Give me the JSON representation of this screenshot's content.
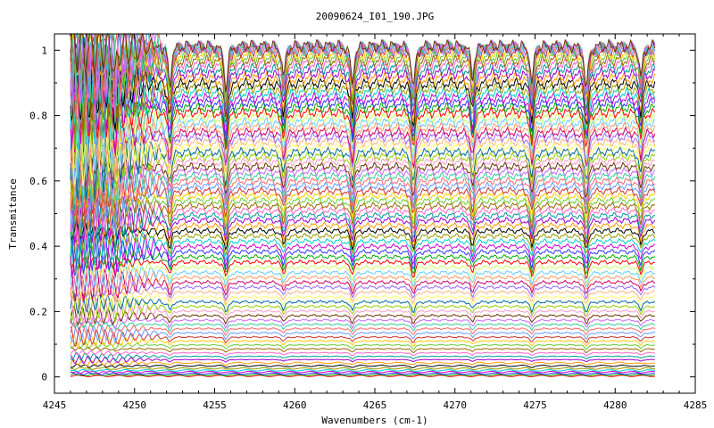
{
  "chart_data": {
    "type": "line",
    "title": "20090624_I01_190.JPG",
    "xlabel": "Wavenumbers (cm-1)",
    "ylabel": "Transmitance",
    "xlim": [
      4245,
      4285
    ],
    "ylim": [
      -0.05,
      1.05
    ],
    "xticks": [
      4245,
      4250,
      4255,
      4260,
      4265,
      4270,
      4275,
      4280,
      4285
    ],
    "yticks": [
      0,
      0.2,
      0.4,
      0.6,
      0.8,
      1
    ],
    "xtick_labels": [
      "4245",
      "4250",
      "4255",
      "4260",
      "4265",
      "4270",
      "4275",
      "4280",
      "4285"
    ],
    "ytick_labels": [
      "0",
      "0.2",
      "0.4",
      "0.6",
      "0.8",
      "1"
    ],
    "grid": false,
    "legend": "none",
    "x_range_of_data": [
      4246,
      4282.5
    ],
    "absorption_lines": [
      4248.8,
      4252.2,
      4255.7,
      4259.3,
      4263.6,
      4267.4,
      4271.1,
      4274.8,
      4278.2,
      4281.6
    ],
    "series_levels": [
      0.003,
      0.006,
      0.01,
      0.015,
      0.02,
      0.026,
      0.034,
      0.043,
      0.053,
      0.063,
      0.074,
      0.086,
      0.098,
      0.11,
      0.122,
      0.135,
      0.148,
      0.161,
      0.174,
      0.188,
      0.202,
      0.216,
      0.23,
      0.245,
      0.26,
      0.275,
      0.29,
      0.305,
      0.32,
      0.336,
      0.352,
      0.368,
      0.384,
      0.4,
      0.416,
      0.432,
      0.448,
      0.464,
      0.48,
      0.495,
      0.51,
      0.525,
      0.54,
      0.555,
      0.57,
      0.585,
      0.6,
      0.615,
      0.63,
      0.645,
      0.66,
      0.675,
      0.69,
      0.705,
      0.72,
      0.735,
      0.75,
      0.765,
      0.78,
      0.795,
      0.81,
      0.825,
      0.84,
      0.855,
      0.87,
      0.885,
      0.9,
      0.915,
      0.93,
      0.945,
      0.96,
      0.97,
      0.98,
      0.99,
      1.0,
      1.005,
      1.008,
      1.01,
      1.012,
      1.014
    ],
    "series_colors": [
      "#ff0000",
      "#00aa00",
      "#3333ff",
      "#cc00cc",
      "#00cccc",
      "#999900",
      "#000000",
      "#ff9900",
      "#9900cc",
      "#009999",
      "#ff66cc",
      "#996600",
      "#66cc33",
      "#ffcc00",
      "#cc3333",
      "#6699ff",
      "#ff6666",
      "#33cc99",
      "#cc66ff",
      "#663300",
      "#ff99cc",
      "#99cc00",
      "#006699",
      "#ffff66",
      "#ffb380",
      "#9966ff",
      "#cc0066",
      "#ff9966",
      "#66ccff",
      "#ccff66"
    ]
  }
}
